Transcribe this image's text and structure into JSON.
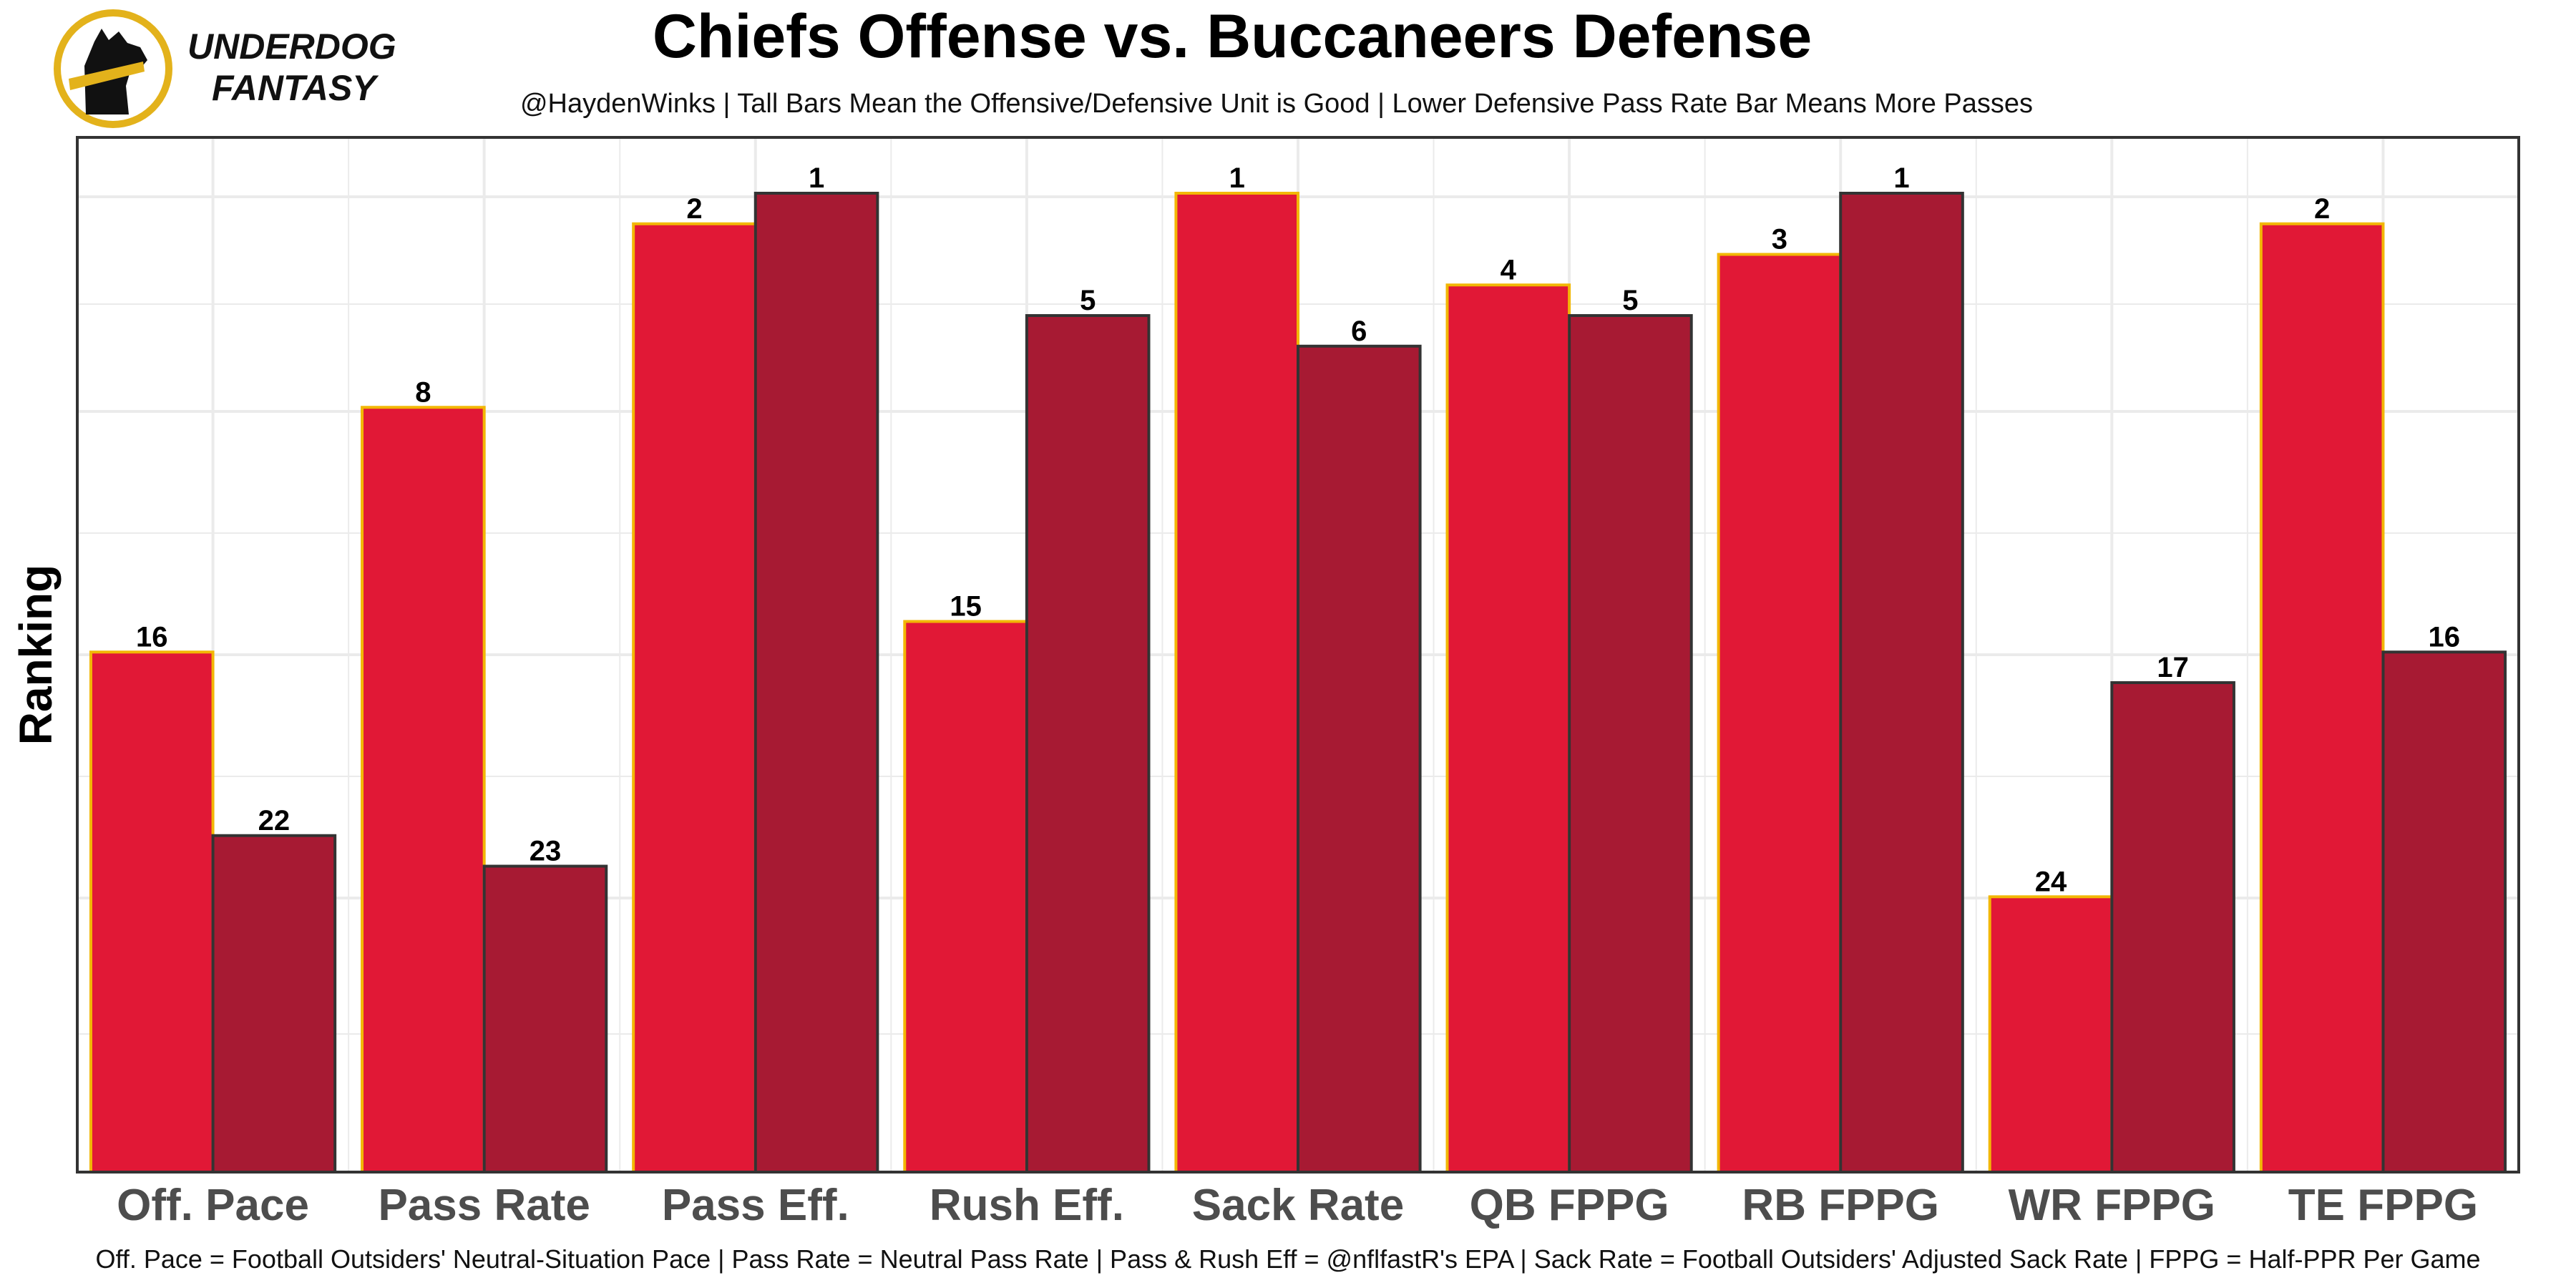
{
  "branding": {
    "logo_line1": "UNDERDOG",
    "logo_line2": "FANTASY",
    "logo_accent": "#e3b21b"
  },
  "colors": {
    "offense_fill": "#e11836",
    "offense_stroke": "#f2b705",
    "defense_fill": "#a71a33",
    "defense_stroke": "#333333",
    "grid": "#ebebeb",
    "panel_border": "#333333"
  },
  "chart_data": {
    "type": "bar",
    "title": "Chiefs Offense vs. Buccaneers Defense",
    "subtitle": "@HaydenWinks | Tall Bars Mean the Offensive/Defensive Unit is Good | Lower Defensive Pass Rate Bar Means More Passes",
    "caption": "Off. Pace = Football Outsiders' Neutral-Situation Pace | Pass Rate = Neutral Pass Rate | Pass & Rush Eff = @nflfastR's EPA | Sack Rate = Football Outsiders' Adjusted Sack Rate | FPPG = Half-PPR Per Game",
    "xlabel": "",
    "ylabel": "Ranking",
    "categories": [
      "Off. Pace",
      "Pass Rate",
      "Pass Eff.",
      "Rush Eff.",
      "Sack Rate",
      "QB FPPG",
      "RB FPPG",
      "WR FPPG",
      "TE FPPG"
    ],
    "series": [
      {
        "name": "Chiefs Offense",
        "values": [
          16,
          8,
          2,
          15,
          1,
          4,
          3,
          24,
          2
        ]
      },
      {
        "name": "Buccaneers Defense",
        "values": [
          22,
          23,
          1,
          5,
          6,
          5,
          1,
          17,
          16
        ]
      }
    ],
    "ylim": [
      32,
      0
    ],
    "grid": true,
    "legend": "none"
  }
}
